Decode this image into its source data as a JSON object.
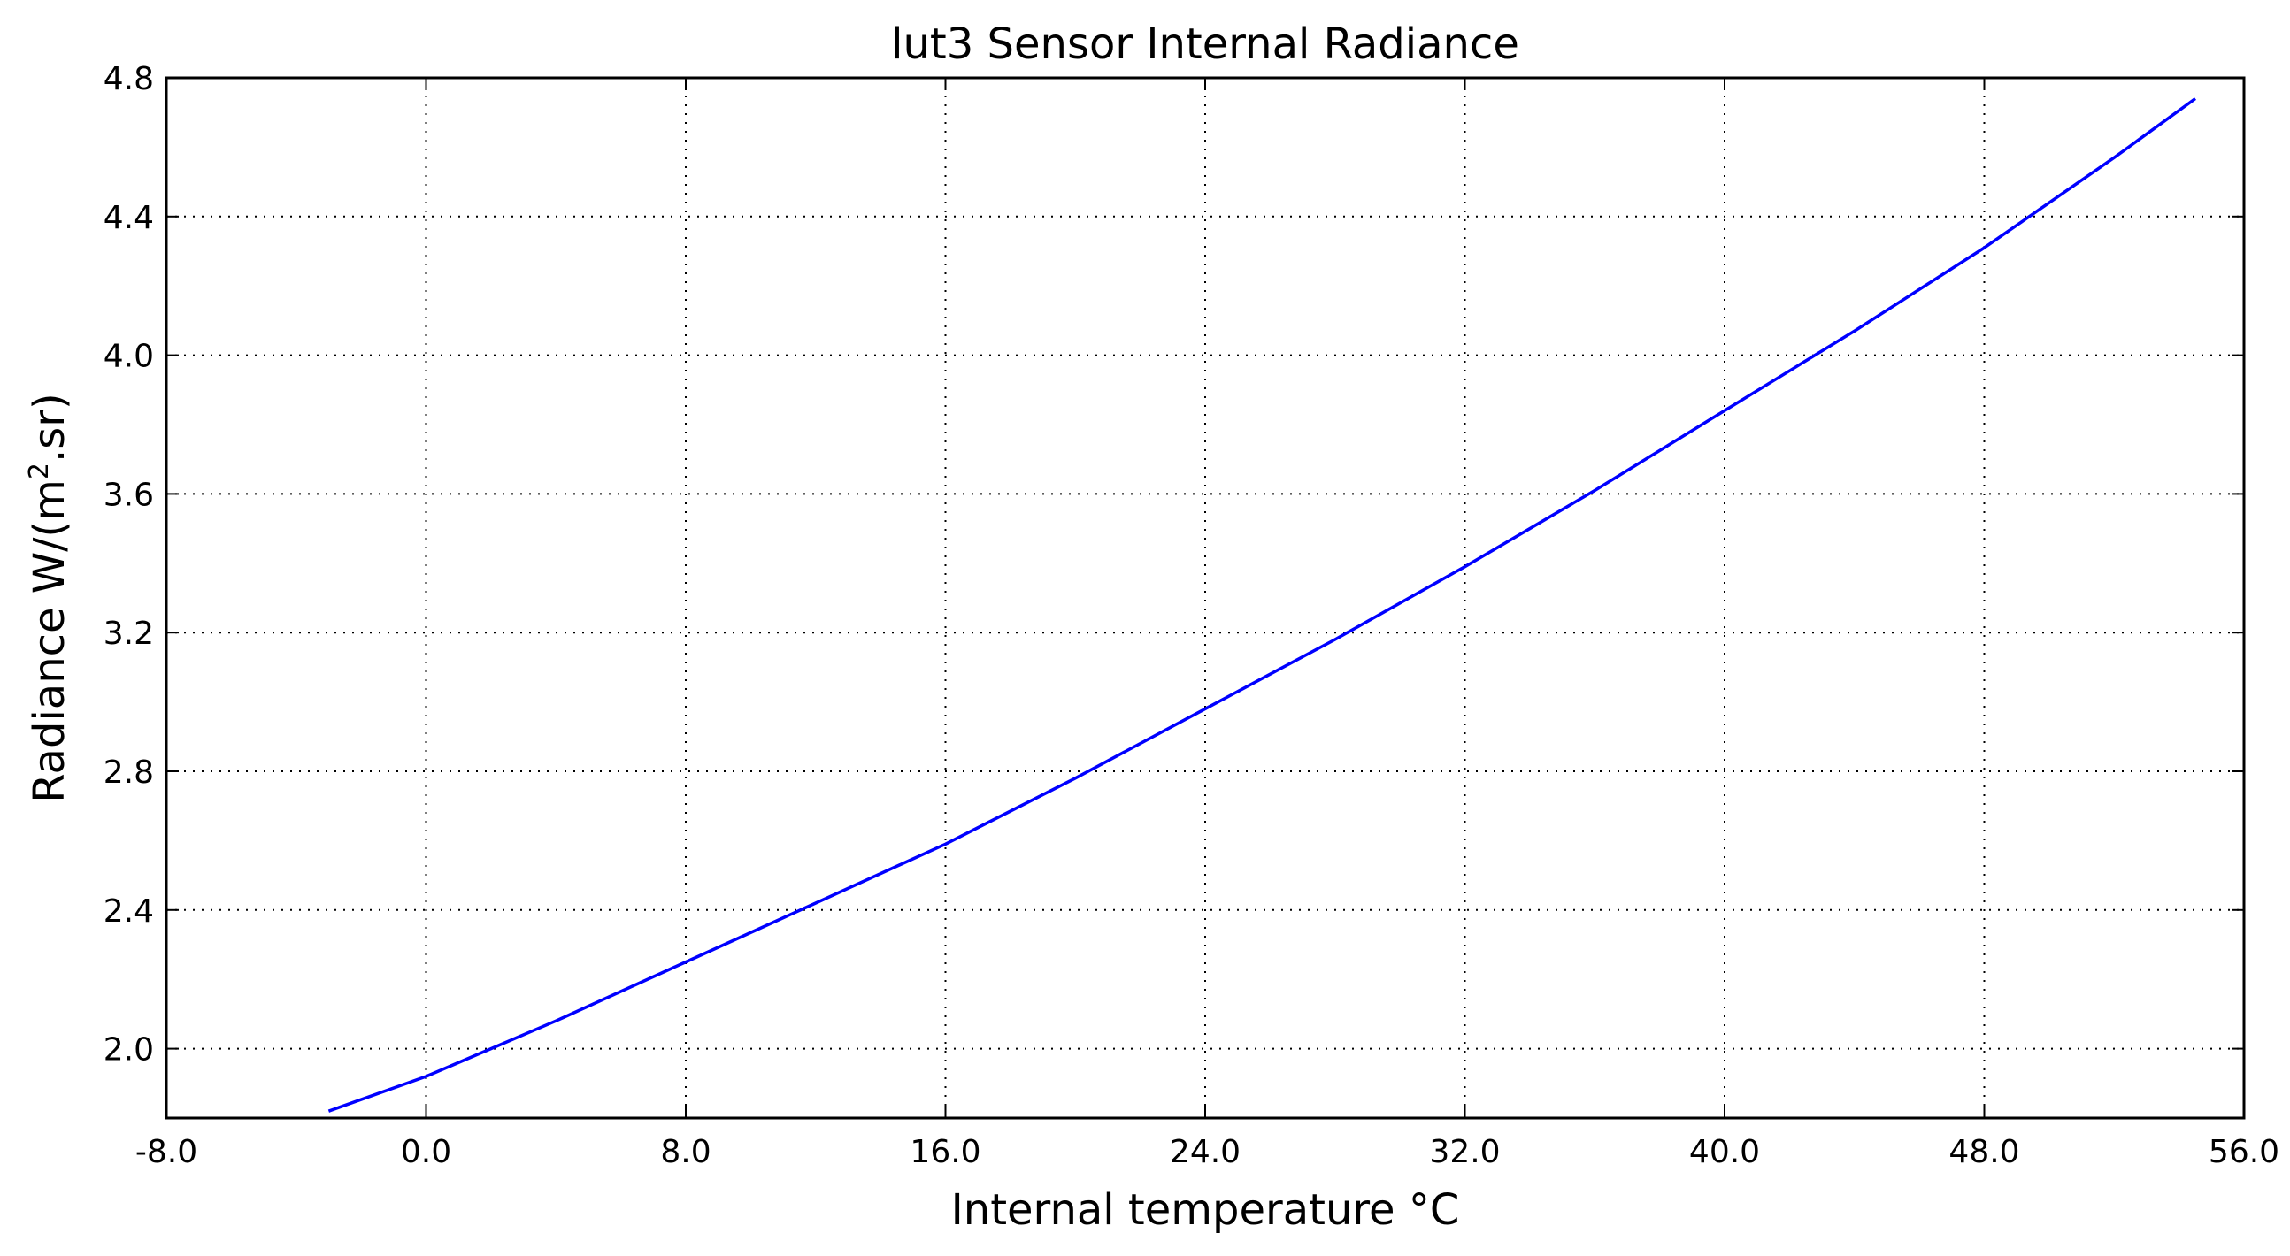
{
  "chart_data": {
    "type": "line",
    "title": "lut3 Sensor Internal Radiance",
    "xlabel": "Internal temperature  °C",
    "ylabel_main": "Radiance W/(m",
    "ylabel_sup": "2",
    "ylabel_end": ".sr)",
    "xlim": [
      -8.0,
      56.0
    ],
    "ylim": [
      1.8,
      4.8
    ],
    "xticks": [
      -8.0,
      0.0,
      8.0,
      16.0,
      24.0,
      32.0,
      40.0,
      48.0,
      56.0
    ],
    "xtick_labels": [
      "-8.0",
      "0.0",
      "8.0",
      "16.0",
      "24.0",
      "32.0",
      "40.0",
      "48.0",
      "56.0"
    ],
    "yticks": [
      2.0,
      2.4,
      2.8,
      3.2,
      3.6,
      4.0,
      4.4,
      4.8
    ],
    "ytick_labels": [
      "2.0",
      "2.4",
      "2.8",
      "3.2",
      "3.6",
      "4.0",
      "4.4",
      "4.8"
    ],
    "grid": true,
    "line_color": "#0000ff",
    "series": [
      {
        "x": [
          -3.0,
          0.0,
          4.0,
          8.0,
          12.0,
          16.0,
          20.0,
          24.0,
          28.0,
          32.0,
          36.0,
          40.0,
          44.0,
          48.0,
          52.0,
          54.5
        ],
        "y": [
          1.82,
          1.92,
          2.08,
          2.25,
          2.42,
          2.59,
          2.78,
          2.98,
          3.18,
          3.39,
          3.61,
          3.84,
          4.07,
          4.31,
          4.57,
          4.74
        ]
      }
    ]
  }
}
